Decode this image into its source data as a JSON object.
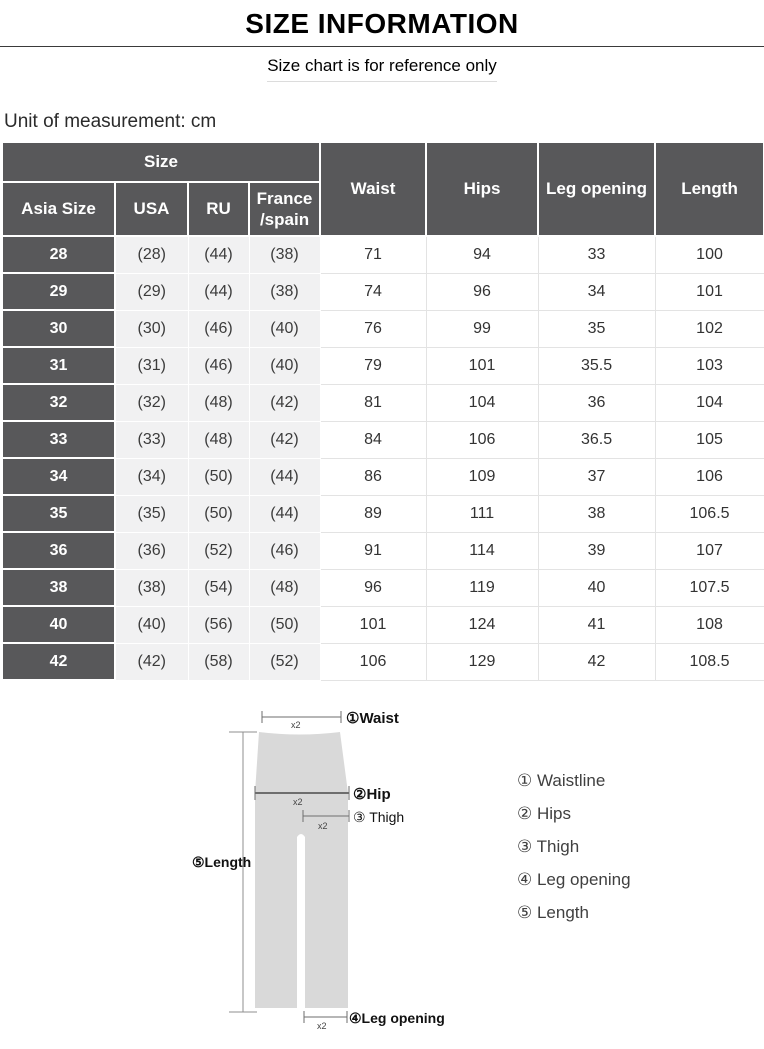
{
  "header": {
    "title": "SIZE INFORMATION",
    "subtitle": "Size chart is for reference only",
    "unit_label": "Unit of measurement: cm"
  },
  "table": {
    "group_header": "Size",
    "sub_headers": [
      "Asia Size",
      "USA",
      "RU",
      "France\n/spain"
    ],
    "measure_headers": [
      "Waist",
      "Hips",
      "Leg opening",
      "Length"
    ],
    "rows": [
      {
        "asia_size": "28",
        "usa": "(28)",
        "ru": "(44)",
        "france_spain": "(38)",
        "waist": "71",
        "hips": "94",
        "leg_opening": "33",
        "length": "100"
      },
      {
        "asia_size": "29",
        "usa": "(29)",
        "ru": "(44)",
        "france_spain": "(38)",
        "waist": "74",
        "hips": "96",
        "leg_opening": "34",
        "length": "101"
      },
      {
        "asia_size": "30",
        "usa": "(30)",
        "ru": "(46)",
        "france_spain": "(40)",
        "waist": "76",
        "hips": "99",
        "leg_opening": "35",
        "length": "102"
      },
      {
        "asia_size": "31",
        "usa": "(31)",
        "ru": "(46)",
        "france_spain": "(40)",
        "waist": "79",
        "hips": "101",
        "leg_opening": "35.5",
        "length": "103"
      },
      {
        "asia_size": "32",
        "usa": "(32)",
        "ru": "(48)",
        "france_spain": "(42)",
        "waist": "81",
        "hips": "104",
        "leg_opening": "36",
        "length": "104"
      },
      {
        "asia_size": "33",
        "usa": "(33)",
        "ru": "(48)",
        "france_spain": "(42)",
        "waist": "84",
        "hips": "106",
        "leg_opening": "36.5",
        "length": "105"
      },
      {
        "asia_size": "34",
        "usa": "(34)",
        "ru": "(50)",
        "france_spain": "(44)",
        "waist": "86",
        "hips": "109",
        "leg_opening": "37",
        "length": "106"
      },
      {
        "asia_size": "35",
        "usa": "(35)",
        "ru": "(50)",
        "france_spain": "(44)",
        "waist": "89",
        "hips": "111",
        "leg_opening": "38",
        "length": "106.5"
      },
      {
        "asia_size": "36",
        "usa": "(36)",
        "ru": "(52)",
        "france_spain": "(46)",
        "waist": "91",
        "hips": "114",
        "leg_opening": "39",
        "length": "107"
      },
      {
        "asia_size": "38",
        "usa": "(38)",
        "ru": "(54)",
        "france_spain": "(48)",
        "waist": "96",
        "hips": "119",
        "leg_opening": "40",
        "length": "107.5"
      },
      {
        "asia_size": "40",
        "usa": "(40)",
        "ru": "(56)",
        "france_spain": "(50)",
        "waist": "101",
        "hips": "124",
        "leg_opening": "41",
        "length": "108"
      },
      {
        "asia_size": "42",
        "usa": "(42)",
        "ru": "(58)",
        "france_spain": "(52)",
        "waist": "106",
        "hips": "129",
        "leg_opening": "42",
        "length": "108.5"
      }
    ]
  },
  "diagram": {
    "multiplier_label": "x2",
    "pointer_labels": {
      "waist": "①Waist",
      "hip": "②Hip",
      "thigh": "③ Thigh",
      "leg_opening": "④Leg opening",
      "length": "⑤Length"
    },
    "legend": [
      "① Waistline",
      "② Hips",
      "③ Thigh",
      "④ Leg opening",
      "⑤ Length"
    ]
  },
  "colors": {
    "header_dark": "#58585a",
    "cell_light": "#f1f1f2",
    "cell_border": "#e3e3e3",
    "pants_fill": "#d9d9d9",
    "measure_line": "#8f8f8f"
  }
}
